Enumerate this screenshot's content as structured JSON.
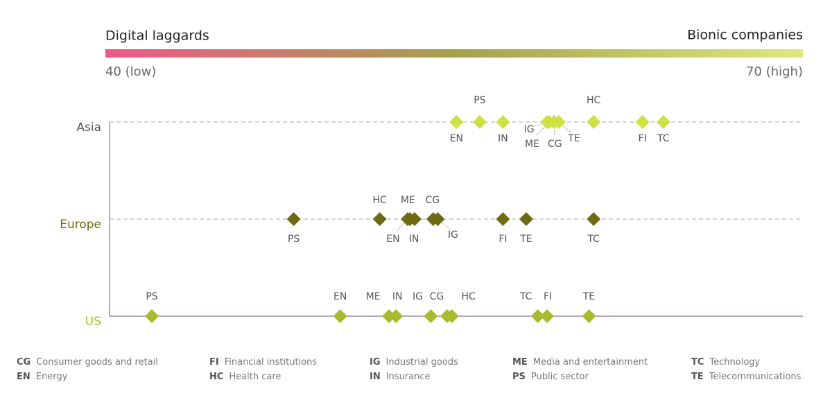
{
  "chart_data": {
    "type": "dot",
    "left_title": "Digital laggards",
    "right_title": "Bionic companies",
    "gradient": [
      "#ec5a8a",
      "#a6a04c",
      "#dfe87a"
    ],
    "xlim": [
      40,
      70
    ],
    "xticks": [
      {
        "value": 40,
        "label": "40 (low)"
      },
      {
        "value": 70,
        "label": "70 (high)"
      }
    ],
    "series": [
      {
        "name": "Asia",
        "color": "#cfe044",
        "label_color": "#555555",
        "categories": [
          "EN",
          "PS",
          "IN",
          "IG",
          "ME",
          "CG",
          "TE",
          "HC",
          "FI",
          "TC"
        ],
        "values": [
          55.1,
          56.1,
          57.1,
          59.0,
          59.1,
          59.3,
          59.5,
          61.0,
          63.1,
          64.0
        ]
      },
      {
        "name": "Europe",
        "color": "#6f6a14",
        "label_color": "#6f6a14",
        "categories": [
          "PS",
          "HC",
          "EN",
          "ME",
          "IN",
          "CG",
          "IG",
          "FI",
          "TE",
          "TC"
        ],
        "values": [
          48.1,
          51.8,
          53.0,
          53.1,
          53.3,
          54.1,
          54.3,
          57.1,
          58.1,
          61.0
        ]
      },
      {
        "name": "US",
        "color": "#a9ba2c",
        "label_color": "#a9ba2c",
        "categories": [
          "PS",
          "EN",
          "ME",
          "IN",
          "IG",
          "CG",
          "HC",
          "TC",
          "FI",
          "TE"
        ],
        "values": [
          42.0,
          50.1,
          52.2,
          52.5,
          54.0,
          54.7,
          54.9,
          58.6,
          59.0,
          60.8
        ]
      }
    ],
    "legend": [
      {
        "code": "CG",
        "label": "Consumer goods and retail"
      },
      {
        "code": "EN",
        "label": "Energy"
      },
      {
        "code": "FI",
        "label": "Financial institutions"
      },
      {
        "code": "HC",
        "label": "Health care"
      },
      {
        "code": "IG",
        "label": "Industrial goods"
      },
      {
        "code": "IN",
        "label": "Insurance"
      },
      {
        "code": "ME",
        "label": "Media and entertainment"
      },
      {
        "code": "PS",
        "label": "Public sector"
      },
      {
        "code": "TC",
        "label": "Technology"
      },
      {
        "code": "TE",
        "label": "Telecommunications"
      }
    ]
  }
}
